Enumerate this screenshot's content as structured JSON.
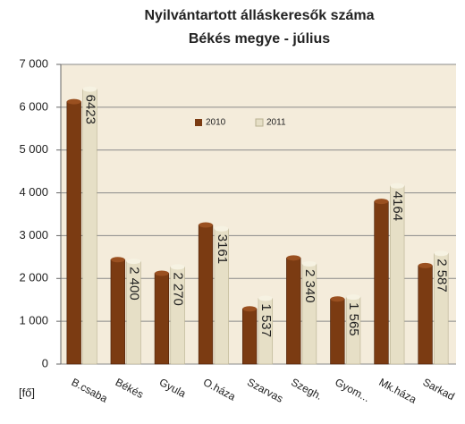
{
  "chart_data": {
    "type": "bar",
    "title": "Nyilvántartott álláskeresők száma",
    "subtitle": "Békés megye - július",
    "y_axis_label": "[fő]",
    "categories": [
      "B.csaba",
      "Békés",
      "Gyula",
      "O.háza",
      "Szarvas",
      "Szegh.",
      "Gyom...",
      "Mk.háza",
      "Sarkad"
    ],
    "series": [
      {
        "name": "2010",
        "color": "#7b3b12",
        "values": [
          6130,
          2440,
          2120,
          3250,
          1290,
          2480,
          1520,
          3800,
          2300
        ]
      },
      {
        "name": "2011",
        "color": "#e6dfc6",
        "values": [
          6423,
          2400,
          2270,
          3161,
          1537,
          2340,
          1565,
          4164,
          2587
        ],
        "value_labels": [
          "6423",
          "2 400",
          "2 270",
          "3161",
          "1 537",
          "2 340",
          "1 565",
          "4164",
          "2 587"
        ]
      }
    ],
    "ylim": [
      0,
      7000
    ],
    "yticks": [
      0,
      {
        "value": 1000,
        "label": "1 000"
      },
      {
        "value": 2000,
        "label": "2 000"
      },
      {
        "value": 3000,
        "label": "3 000"
      },
      {
        "value": 4000,
        "label": "4 000"
      },
      {
        "value": 5000,
        "label": "5 000"
      },
      {
        "value": 6000,
        "label": "6 000"
      },
      {
        "value": 7000,
        "label": "7 000"
      }
    ],
    "grid": true
  }
}
